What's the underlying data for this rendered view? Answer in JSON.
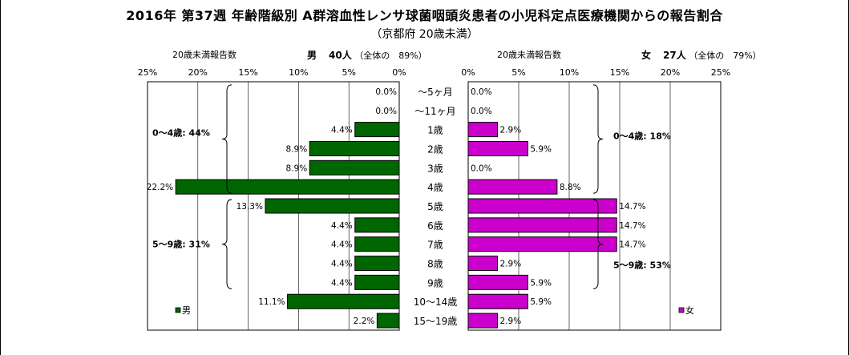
{
  "title": "2016年 第37週 年齢階級別 A群溶血性レンサ球菌咽頭炎患者の小児科定点医療機関からの報告割合",
  "subtitle": "（京都府 20歳未満）",
  "male_header": {
    "label": "20歳未満報告数",
    "name": "男",
    "count": "40人",
    "note": "（全体の　89%）"
  },
  "female_header": {
    "label": "20歳未満報告数",
    "name": "女",
    "count": "27人",
    "note": "（全体の　79%）"
  },
  "legend": {
    "male": "男",
    "female": "女"
  },
  "colors": {
    "male": "#006600",
    "female": "#cc00cc"
  },
  "chart_data": {
    "type": "bar",
    "orientation": "horizontal-population-pyramid",
    "categories": [
      "～5ヶ月",
      "～11ヶ月",
      "1歳",
      "2歳",
      "3歳",
      "4歳",
      "5歳",
      "6歳",
      "7歳",
      "8歳",
      "9歳",
      "10～14歳",
      "15～19歳"
    ],
    "series": [
      {
        "name": "男",
        "values": [
          0.0,
          0.0,
          4.4,
          8.9,
          8.9,
          22.2,
          13.3,
          4.4,
          4.4,
          4.4,
          4.4,
          11.1,
          2.2
        ],
        "labels": [
          "0.0%",
          "0.0%",
          "4.4%",
          "8.9%",
          "8.9%",
          "22.2%",
          "13.3%",
          "4.4%",
          "4.4%",
          "4.4%",
          "4.4%",
          "11.1%",
          "2.2%"
        ]
      },
      {
        "name": "女",
        "values": [
          0.0,
          0.0,
          2.9,
          5.9,
          0.0,
          8.8,
          14.7,
          14.7,
          14.7,
          2.9,
          5.9,
          5.9,
          2.9
        ],
        "labels": [
          "0.0%",
          "0.0%",
          "2.9%",
          "5.9%",
          "0.0%",
          "8.8%",
          "14.7%",
          "14.7%",
          "14.7%",
          "2.9%",
          "5.9%",
          "5.9%",
          "2.9%"
        ]
      }
    ],
    "xlim": [
      0,
      25
    ],
    "male_ticks": [
      "25%",
      "20%",
      "15%",
      "10%",
      "5%",
      "0%"
    ],
    "female_ticks": [
      "0%",
      "5%",
      "10%",
      "15%",
      "20%",
      "25%"
    ],
    "grid": true,
    "legend_position": "bottom-corners",
    "annotations": {
      "male": [
        {
          "text": "0～4歳: 44%",
          "from": 0,
          "to": 5
        },
        {
          "text": "5～9歳: 31%",
          "from": 6,
          "to": 10
        }
      ],
      "female": [
        {
          "text": "0～4歳: 18%",
          "from": 0,
          "to": 5
        },
        {
          "text": "5～9歳: 53%",
          "from": 6,
          "to": 10
        }
      ]
    }
  }
}
